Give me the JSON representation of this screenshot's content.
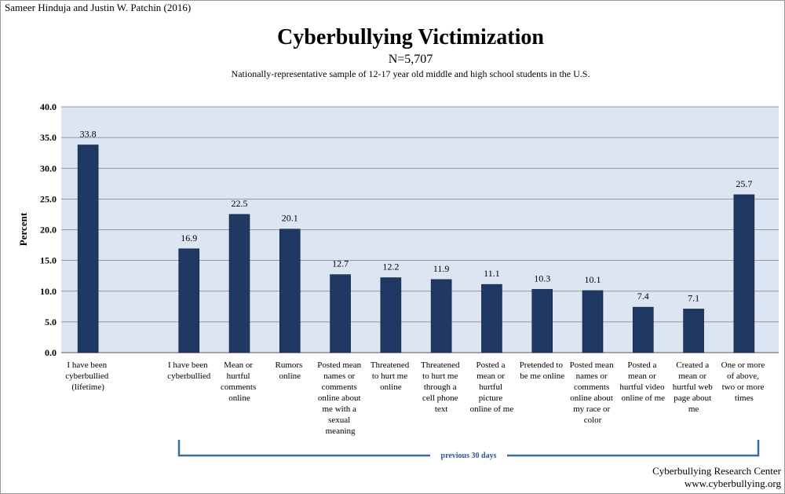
{
  "chart_data": {
    "type": "bar",
    "credit": "Sameer Hinduja and Justin W. Patchin (2016)",
    "title": "Cyberbullying Victimization",
    "sample_size": "N=5,707",
    "subtitle": "Nationally-representative sample of 12-17 year old middle and high school students in the U.S.",
    "y_label": "Percent",
    "bracket_label": "previous 30 days",
    "source": "Cyberbullying Research Center",
    "source_url": "www.cyberbullying.org",
    "categories": [
      "I have been cyberbullied (lifetime)",
      null,
      "I have been cyberbullied",
      "Mean or hurtful comments online",
      "Rumors online",
      "Posted mean names or comments online about me with a sexual meaning",
      "Threatened to hurt me online",
      "Threatened to hurt me through a cell phone text",
      "Posted a mean or hurtful picture online of me",
      "Pretended to be me online",
      "Posted mean names or comments online about my race or color",
      "Posted a mean or hurtful video online of me",
      "Created a mean or hurtful web page about me",
      "One or more of above, two or more times"
    ],
    "values": [
      33.8,
      null,
      16.9,
      22.5,
      20.1,
      12.7,
      12.2,
      11.9,
      11.1,
      10.3,
      10.1,
      7.4,
      7.1,
      25.7
    ],
    "color": "#1f3864",
    "ylim": [
      0,
      40
    ],
    "yticks": [
      {
        "value": 0,
        "label": "0.0"
      },
      {
        "value": 5,
        "label": "5.0"
      },
      {
        "value": 10,
        "label": "10.0"
      },
      {
        "value": 15,
        "label": "15.0"
      },
      {
        "value": 20,
        "label": "20.0"
      },
      {
        "value": 25,
        "label": "25.0"
      },
      {
        "value": 30,
        "label": "30.0"
      },
      {
        "value": 35,
        "label": "35.0"
      },
      {
        "value": 40,
        "label": "40.0"
      }
    ],
    "grid": true
  }
}
